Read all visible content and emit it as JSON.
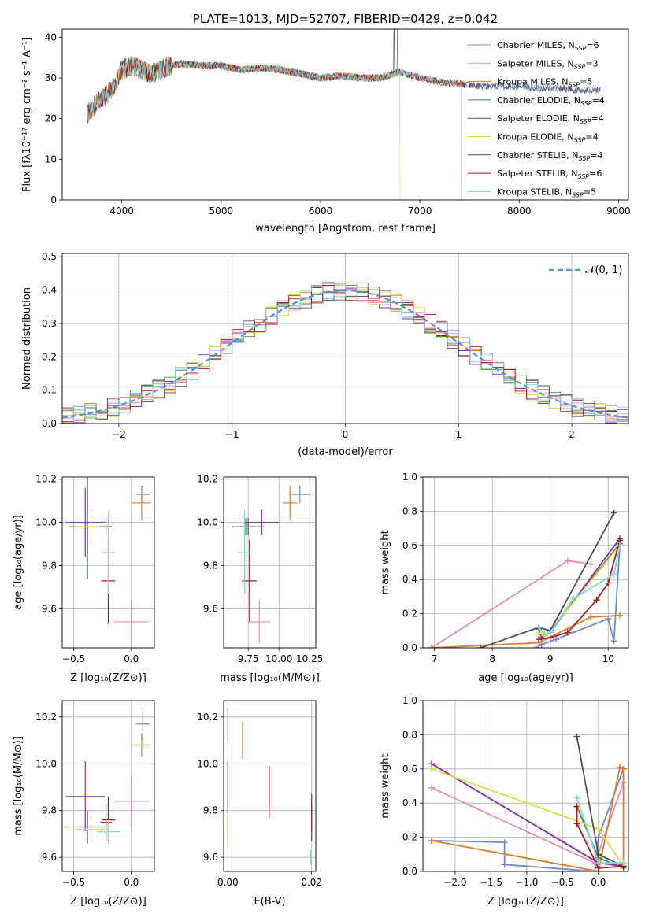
{
  "colors": [
    "#6a8ad6",
    "#e58bc0",
    "#e07c24",
    "#4a8c4a",
    "#8a2aa8",
    "#d8e040",
    "#505050",
    "#b01818",
    "#7fd9e0"
  ],
  "chart_data": [
    {
      "id": "spectrum",
      "type": "line",
      "title": "PLATE=1013, MJD=52707, FIBERID=0429, z=0.042",
      "xlabel": "wavelength [Angstrom, rest frame]",
      "ylabel": "Flux [fλ10⁻¹⁷ erg cm⁻² s⁻¹ A⁻¹]",
      "xlim": [
        3400,
        9100
      ],
      "ylim": [
        0,
        42
      ],
      "xticks": [
        "4000",
        "5000",
        "6000",
        "7000",
        "8000",
        "9000"
      ],
      "yticks": [
        "0",
        "10",
        "20",
        "30",
        "40"
      ],
      "legend_position": "upper-right",
      "series": [
        {
          "name": "Chabrier MILES, N_SSP=6"
        },
        {
          "name": "Salpeter MILES, N_SSP=3"
        },
        {
          "name": "Kroupa MILES, N_SSP=5"
        },
        {
          "name": "Chabrier ELODIE, N_SSP=4"
        },
        {
          "name": "Salpeter ELODIE, N_SSP=4"
        },
        {
          "name": "Kroupa ELODIE, N_SSP=4"
        },
        {
          "name": "Chabrier STELIB, N_SSP=4"
        },
        {
          "name": "Salpeter STELIB, N_SSP=6"
        },
        {
          "name": "Kroupa STELIB, N_SSP=5"
        }
      ],
      "continuum": [
        [
          3650,
          21
        ],
        [
          3750,
          24
        ],
        [
          3900,
          27
        ],
        [
          4000,
          32
        ],
        [
          4100,
          33
        ],
        [
          4200,
          32
        ],
        [
          4300,
          31
        ],
        [
          4400,
          32
        ],
        [
          4500,
          33
        ],
        [
          4600,
          33.5
        ],
        [
          4800,
          33
        ],
        [
          5000,
          33
        ],
        [
          5200,
          32
        ],
        [
          5400,
          32.5
        ],
        [
          5600,
          32
        ],
        [
          5800,
          31
        ],
        [
          6000,
          30
        ],
        [
          6200,
          30.5
        ],
        [
          6400,
          30
        ],
        [
          6600,
          30
        ],
        [
          6800,
          31.5
        ],
        [
          7000,
          30
        ],
        [
          7200,
          29
        ],
        [
          7400,
          28.5
        ],
        [
          7600,
          28
        ],
        [
          7800,
          28
        ],
        [
          8000,
          28
        ],
        [
          8200,
          27.5
        ],
        [
          8400,
          27.5
        ],
        [
          8600,
          27
        ],
        [
          8820,
          27
        ]
      ],
      "series_ranges": [
        [
          3650,
          8820
        ],
        [
          3650,
          7400
        ],
        [
          3650,
          7420
        ],
        [
          4000,
          6800
        ],
        [
          4000,
          6800
        ],
        [
          3900,
          6800
        ],
        [
          3650,
          8820
        ],
        [
          3650,
          7450
        ],
        [
          3650,
          7420
        ]
      ]
    },
    {
      "id": "residuals",
      "type": "line",
      "xlabel": "(data-model)/error",
      "ylabel": "Normed distribution",
      "xlim": [
        -2.5,
        2.5
      ],
      "ylim": [
        0,
        0.51
      ],
      "xticks": [
        "−2",
        "−1",
        "0",
        "1",
        "2"
      ],
      "yticks": [
        "0.0",
        "0.1",
        "0.2",
        "0.3",
        "0.4",
        "0.5"
      ],
      "reference_curve": "𝒩(0, 1)",
      "reference": {
        "mean": 0,
        "sd": 1
      },
      "legend_position": "upper-right",
      "bin_width": 0.1
    },
    {
      "id": "age-vs-Z",
      "type": "scatter",
      "xlabel": "Z [log₁₀(Z/Z⊙)]",
      "ylabel": "age  [log₁₀(age/yr)]",
      "xlim": [
        -0.6,
        0.2
      ],
      "ylim": [
        9.42,
        10.21
      ],
      "xticks": [
        "−0.5",
        "0.0"
      ],
      "yticks": [
        "9.6",
        "9.8",
        "10.0",
        "10.2"
      ],
      "points": [
        {
          "x": 0.1,
          "y": 10.13,
          "xerr": 0.06,
          "yerr": 0.04,
          "c": 0
        },
        {
          "x": 0.0,
          "y": 9.54,
          "xerr": 0.15,
          "yerr": 0.1,
          "c": 1
        },
        {
          "x": 0.09,
          "y": 10.09,
          "xerr": 0.08,
          "yerr": 0.08,
          "c": 2
        },
        {
          "x": -0.38,
          "y": 9.98,
          "xerr": 0.16,
          "yerr": 0.24,
          "c": 3
        },
        {
          "x": -0.4,
          "y": 10.0,
          "xerr": 0.17,
          "yerr": 0.16,
          "c": 4
        },
        {
          "x": -0.35,
          "y": 9.98,
          "xerr": 0.13,
          "yerr": 0.08,
          "c": 5
        },
        {
          "x": -0.22,
          "y": 9.98,
          "xerr": 0.05,
          "yerr": 0.04,
          "c": 6
        },
        {
          "x": -0.2,
          "y": 9.73,
          "xerr": 0.06,
          "yerr": 0.2,
          "c": 7
        },
        {
          "x": -0.2,
          "y": 9.86,
          "xerr": 0.05,
          "yerr": 0.19,
          "c": 8
        }
      ]
    },
    {
      "id": "age-vs-mass",
      "type": "scatter",
      "xlabel": "mass [log₁₀(M/M⊙)]",
      "xlim": [
        9.55,
        10.3
      ],
      "ylim": [
        9.42,
        10.21
      ],
      "xticks": [
        "9.75",
        "10.00",
        "10.25"
      ],
      "yticks": [
        "9.6",
        "9.8",
        "10.0",
        "10.2"
      ],
      "points": [
        {
          "x": 10.17,
          "y": 10.13,
          "xerr": 0.09,
          "yerr": 0.04,
          "c": 0
        },
        {
          "x": 9.84,
          "y": 9.54,
          "xerr": 0.09,
          "yerr": 0.1,
          "c": 1
        },
        {
          "x": 10.09,
          "y": 10.09,
          "xerr": 0.06,
          "yerr": 0.08,
          "c": 2
        },
        {
          "x": 9.73,
          "y": 9.98,
          "xerr": 0.07,
          "yerr": 0.04,
          "c": 3
        },
        {
          "x": 9.86,
          "y": 10.0,
          "xerr": 0.14,
          "yerr": 0.06,
          "c": 4
        },
        {
          "x": 9.72,
          "y": 9.98,
          "xerr": 0.1,
          "yerr": 0.08,
          "c": 5
        },
        {
          "x": 9.75,
          "y": 9.98,
          "xerr": 0.13,
          "yerr": 0.04,
          "c": 6
        },
        {
          "x": 9.76,
          "y": 9.73,
          "xerr": 0.06,
          "yerr": 0.19,
          "c": 7
        },
        {
          "x": 9.72,
          "y": 9.86,
          "xerr": 0.05,
          "yerr": 0.19,
          "c": 8
        }
      ]
    },
    {
      "id": "mass-weight-vs-age",
      "type": "line",
      "xlabel": "age  [log₁₀(age/yr)]",
      "ylabel": "mass weight",
      "xlim": [
        6.8,
        10.35
      ],
      "ylim": [
        0,
        1.0
      ],
      "xticks": [
        "7",
        "8",
        "9",
        "10"
      ],
      "yticks": [
        "0.0",
        "0.2",
        "0.4",
        "0.6",
        "0.8",
        "1.0"
      ],
      "series": [
        {
          "c": 0,
          "x": [
            8.75,
            8.85,
            9.1,
            10.0,
            10.1,
            10.2
          ],
          "y": [
            0.0,
            0.02,
            0.05,
            0.17,
            0.04,
            0.6
          ]
        },
        {
          "c": 1,
          "x": [
            6.95,
            9.3,
            9.7
          ],
          "y": [
            0.0,
            0.51,
            0.49
          ]
        },
        {
          "c": 2,
          "x": [
            6.95,
            8.8,
            9.7,
            10.2
          ],
          "y": [
            0.0,
            0.03,
            0.18,
            0.19
          ]
        },
        {
          "c": 3,
          "x": [
            8.9,
            9.0,
            10.2
          ],
          "y": [
            0.07,
            0.1,
            0.61
          ]
        },
        {
          "c": 4,
          "x": [
            8.8,
            8.85,
            9.0,
            10.2
          ],
          "y": [
            0.11,
            0.06,
            0.09,
            0.64
          ]
        },
        {
          "c": 5,
          "x": [
            8.8,
            8.9,
            9.0,
            10.2
          ],
          "y": [
            0.09,
            0.07,
            0.1,
            0.6
          ]
        },
        {
          "c": 6,
          "x": [
            7.8,
            8.8,
            9.0,
            10.1
          ],
          "y": [
            0.0,
            0.12,
            0.1,
            0.79
          ]
        },
        {
          "c": 7,
          "x": [
            8.8,
            9.0,
            9.3,
            9.8,
            10.0,
            10.2
          ],
          "y": [
            0.05,
            0.06,
            0.09,
            0.28,
            0.38,
            0.63
          ]
        },
        {
          "c": 8,
          "x": [
            8.8,
            8.9,
            9.0,
            9.4,
            10.1,
            10.2
          ],
          "y": [
            0.12,
            0.08,
            0.09,
            0.29,
            0.43,
            0.6
          ]
        }
      ]
    },
    {
      "id": "mass-vs-Z",
      "type": "scatter",
      "xlabel": "Z [log₁₀(Z/Z⊙)]",
      "ylabel": "mass [log₁₀(M/M⊙)]",
      "xlim": [
        -0.6,
        0.2
      ],
      "ylim": [
        9.54,
        10.27
      ],
      "xticks": [
        "−0.5",
        "0.0"
      ],
      "yticks": [
        "9.6",
        "9.8",
        "10.0",
        "10.2"
      ],
      "points": [
        {
          "x": 0.1,
          "y": 10.17,
          "xerr": 0.06,
          "yerr": 0.07,
          "c": 0
        },
        {
          "x": 0.0,
          "y": 9.84,
          "xerr": 0.15,
          "yerr": 0.11,
          "c": 1
        },
        {
          "x": 0.09,
          "y": 10.08,
          "xerr": 0.08,
          "yerr": 0.05,
          "c": 2
        },
        {
          "x": -0.38,
          "y": 9.73,
          "xerr": 0.2,
          "yerr": 0.07,
          "c": 3
        },
        {
          "x": -0.4,
          "y": 9.86,
          "xerr": 0.17,
          "yerr": 0.15,
          "c": 4
        },
        {
          "x": -0.35,
          "y": 9.72,
          "xerr": 0.13,
          "yerr": 0.06,
          "c": 5
        },
        {
          "x": -0.22,
          "y": 9.75,
          "xerr": 0.05,
          "yerr": 0.08,
          "c": 6
        },
        {
          "x": -0.2,
          "y": 9.76,
          "xerr": 0.06,
          "yerr": 0.1,
          "c": 7
        },
        {
          "x": -0.2,
          "y": 9.71,
          "xerr": 0.1,
          "yerr": 0.05,
          "c": 8
        }
      ]
    },
    {
      "id": "mass-vs-EBV",
      "type": "scatter",
      "xlabel": "E(B-V)",
      "xlim": [
        -0.001,
        0.021
      ],
      "ylim": [
        9.54,
        10.27
      ],
      "xticks": [
        "0.00",
        "0.02"
      ],
      "yticks": [
        "9.6",
        "9.8",
        "10.0",
        "10.2"
      ],
      "points": [
        {
          "x": 0.0,
          "y": 10.17,
          "yerr": 0.07,
          "c": 0
        },
        {
          "x": 0.01,
          "y": 9.88,
          "yerr": 0.11,
          "c": 1
        },
        {
          "x": 0.0035,
          "y": 10.1,
          "yerr": 0.08,
          "c": 2
        },
        {
          "x": 0.0,
          "y": 9.73,
          "yerr": 0.07,
          "c": 3
        },
        {
          "x": 0.0,
          "y": 9.86,
          "yerr": 0.15,
          "c": 4
        },
        {
          "x": 0.0,
          "y": 9.72,
          "yerr": 0.07,
          "c": 5
        },
        {
          "x": 0.02,
          "y": 9.75,
          "yerr": 0.08,
          "c": 6
        },
        {
          "x": 0.02,
          "y": 9.79,
          "yerr": 0.08,
          "c": 7
        },
        {
          "x": 0.0198,
          "y": 9.6,
          "yerr": 0.03,
          "c": 8
        }
      ]
    },
    {
      "id": "mass-weight-vs-Z",
      "type": "line",
      "xlabel": "Z [log₁₀(Z/Z⊙)]",
      "ylabel": "mass weight",
      "xlim": [
        -2.45,
        0.42
      ],
      "ylim": [
        0,
        1.0
      ],
      "xticks": [
        "−2.0",
        "−1.5",
        "−1.0",
        "−0.5",
        "0.0"
      ],
      "yticks": [
        "0.0",
        "0.2",
        "0.4",
        "0.6",
        "0.8",
        "1.0"
      ],
      "series": [
        {
          "c": 0,
          "x": [
            -2.33,
            -1.31,
            -1.31,
            -0.05,
            0.0,
            0.35
          ],
          "y": [
            0.18,
            0.17,
            0.04,
            0.0,
            0.2,
            0.6
          ]
        },
        {
          "c": 1,
          "x": [
            -2.33,
            -0.05,
            0.35
          ],
          "y": [
            0.49,
            0.05,
            0.52
          ]
        },
        {
          "c": 2,
          "x": [
            -2.33,
            0.0,
            0.3,
            0.35,
            0.35
          ],
          "y": [
            0.18,
            0.0,
            0.61,
            0.6,
            0.03
          ]
        },
        {
          "c": 3,
          "x": [
            -0.3,
            0.0,
            0.35
          ],
          "y": [
            0.38,
            0.08,
            0.02
          ]
        },
        {
          "c": 4,
          "x": [
            -2.33,
            0.0,
            0.35
          ],
          "y": [
            0.63,
            0.05,
            0.03
          ]
        },
        {
          "c": 5,
          "x": [
            -2.33,
            0.0,
            0.35
          ],
          "y": [
            0.6,
            0.25,
            0.03
          ]
        },
        {
          "c": 6,
          "x": [
            -0.3,
            0.0,
            0.35
          ],
          "y": [
            0.79,
            0.1,
            0.03
          ]
        },
        {
          "c": 7,
          "x": [
            -0.3,
            -0.3,
            0.0,
            0.35
          ],
          "y": [
            0.38,
            0.28,
            0.02,
            0.03
          ]
        },
        {
          "c": 8,
          "x": [
            -0.3,
            0.0,
            0.35
          ],
          "y": [
            0.43,
            0.05,
            0.05
          ]
        }
      ]
    }
  ]
}
